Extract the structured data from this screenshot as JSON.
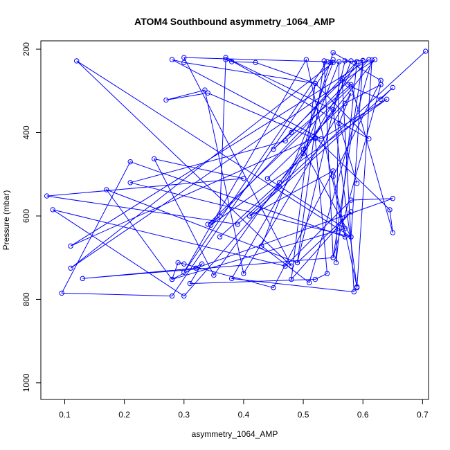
{
  "chart_data": {
    "type": "line",
    "title": "ATOM4 Southbound asymmetry_1064_AMP",
    "xlabel": "asymmetry_1064_AMP",
    "ylabel": "Pressure (mbar)",
    "xlim": [
      0.06,
      0.71
    ],
    "ylim": [
      1040,
      180
    ],
    "y_reversed": true,
    "grid": false,
    "color": "#0000ff",
    "x_ticks": [
      0.1,
      0.2,
      0.3,
      0.4,
      0.5,
      0.6,
      0.7
    ],
    "x_tick_labels": [
      "0.1",
      "0.2",
      "0.3",
      "0.4",
      "0.5",
      "0.6",
      "0.7"
    ],
    "y_ticks": [
      200,
      400,
      600,
      800,
      1000
    ],
    "y_tick_labels": [
      "200",
      "400",
      "600",
      "800",
      "1000"
    ],
    "series": [
      {
        "x": [
          0.705,
          0.39,
          0.07,
          0.4,
          0.25,
          0.35,
          0.5,
          0.55,
          0.63,
          0.55,
          0.59,
          0.55,
          0.46,
          0.3,
          0.08,
          0.47,
          0.58,
          0.65,
          0.32,
          0.13,
          0.55,
          0.63,
          0.57,
          0.44,
          0.57,
          0.28,
          0.17,
          0.49,
          0.58,
          0.48,
          0.52,
          0.42,
          0.38,
          0.37,
          0.36,
          0.34,
          0.58,
          0.63,
          0.65,
          0.41,
          0.55,
          0.45,
          0.3,
          0.29,
          0.28,
          0.33,
          0.31,
          0.52,
          0.54,
          0.52,
          0.34,
          0.27,
          0.335,
          0.4,
          0.58,
          0.56,
          0.59
        ],
        "y": [
          205,
          620,
          552,
          510,
          463,
          742,
          440,
          208,
          275,
          505,
          770,
          345,
          530,
          792,
          585,
          720,
          562,
          558,
          725,
          750,
          700,
          285,
          330,
          510,
          630,
          752,
          537,
          712,
          590,
          752,
          282,
          232,
          230,
          225,
          600,
          620,
          290,
          320,
          292,
          600,
          492,
          772,
          715,
          712,
          752,
          715,
          762,
          752,
          738,
          415,
          305,
          322,
          298,
          738,
          305,
          378,
          522
        ]
      },
      {
        "x": [
          0.58,
          0.55,
          0.37,
          0.61,
          0.52,
          0.3,
          0.28,
          0.53,
          0.64,
          0.345,
          0.61,
          0.11,
          0.52,
          0.645,
          0.65,
          0.58,
          0.47,
          0.21,
          0.58,
          0.5,
          0.62,
          0.11,
          0.55,
          0.43,
          0.51,
          0.615,
          0.59
        ],
        "y": [
          228,
          345,
          220,
          415,
          282,
          232,
          225,
          415,
          320,
          622,
          225,
          672,
          412,
          585,
          640,
          285,
          420,
          520,
          650,
          440,
          225,
          725,
          232,
          672,
          760,
          226,
          772
        ]
      },
      {
        "x": [
          0.36,
          0.46,
          0.5,
          0.56,
          0.555,
          0.59,
          0.57,
          0.49,
          0.535,
          0.55,
          0.6,
          0.58,
          0.12,
          0.48,
          0.3,
          0.54,
          0.3,
          0.505,
          0.57,
          0.21,
          0.095,
          0.28,
          0.55,
          0.545,
          0.6,
          0.45,
          0.48,
          0.59,
          0.38,
          0.585,
          0.565,
          0.575
        ],
        "y": [
          650,
          520,
          450,
          230,
          712,
          230,
          228,
          712,
          228,
          700,
          228,
          650,
          228,
          720,
          220,
          230,
          735,
          225,
          650,
          470,
          785,
          792,
          225,
          232,
          227,
          440,
          400,
          230,
          750,
          782,
          270,
          285
        ]
      }
    ]
  }
}
